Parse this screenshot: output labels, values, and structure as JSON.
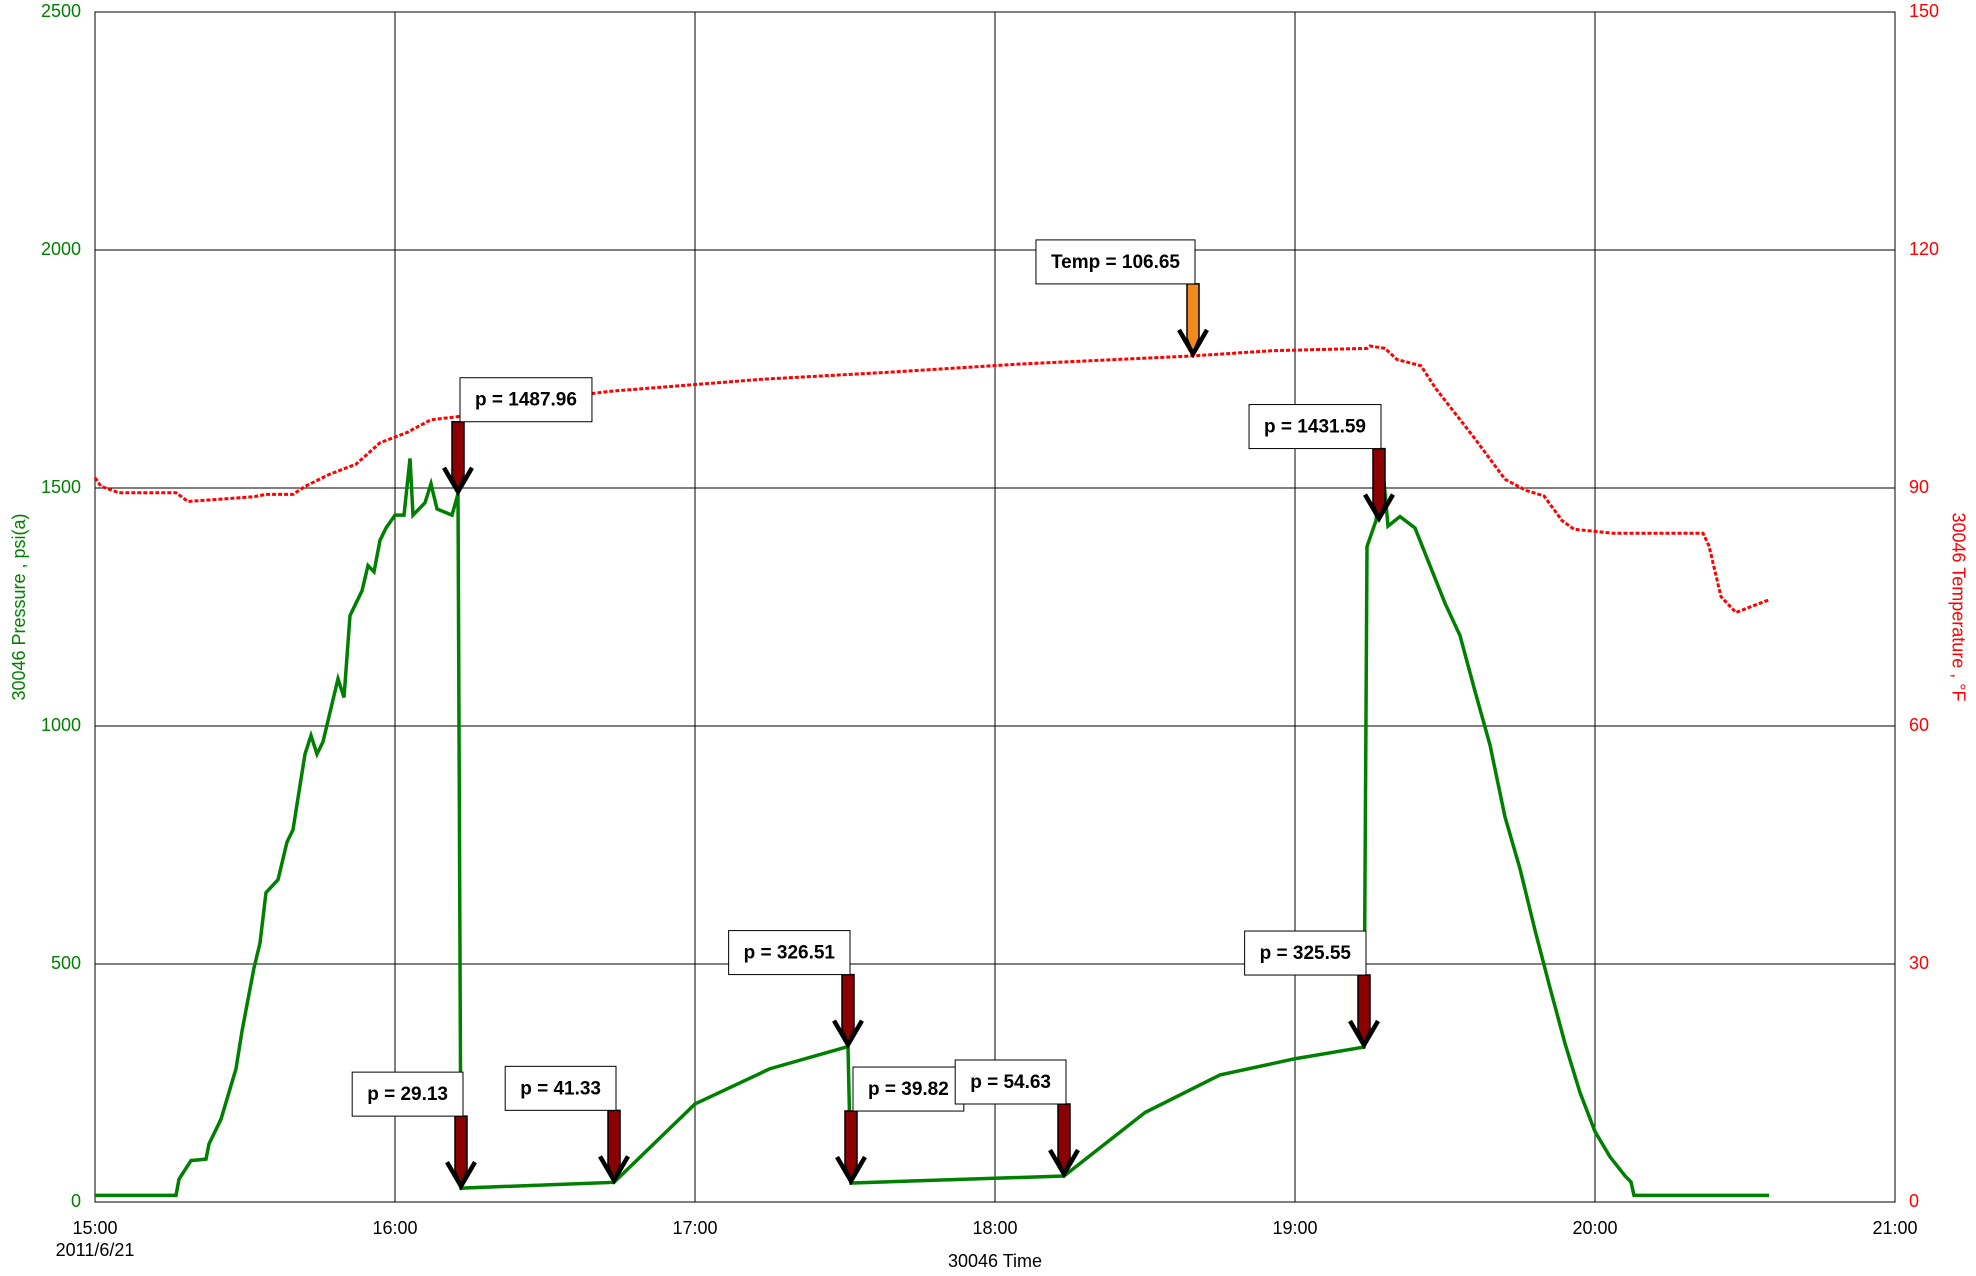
{
  "chart_data": {
    "type": "line",
    "x_label": "30046 Time",
    "x_date_label": "2011/6/21",
    "y_label": "30046 Pressure , psi(a)",
    "y2_label": "30046 Temperature , °F",
    "xlim": [
      15,
      21
    ],
    "xticks": [
      {
        "value": 15,
        "label": "15:00"
      },
      {
        "value": 16,
        "label": "16:00"
      },
      {
        "value": 17,
        "label": "17:00"
      },
      {
        "value": 18,
        "label": "18:00"
      },
      {
        "value": 19,
        "label": "19:00"
      },
      {
        "value": 20,
        "label": "20:00"
      },
      {
        "value": 21,
        "label": "21:00"
      }
    ],
    "ylim": [
      0,
      2500
    ],
    "yticks": [
      0,
      500,
      1000,
      1500,
      2000,
      2500
    ],
    "y2lim": [
      0,
      150
    ],
    "y2ticks": [
      0,
      30,
      60,
      90,
      120,
      150
    ],
    "grid": true,
    "y_color": "#008000",
    "y2_color": "#ff0000",
    "series": [
      {
        "color": "#008000",
        "axis": "y",
        "dashed": false,
        "x": [
          15.0,
          15.27,
          15.28,
          15.32,
          15.37,
          15.38,
          15.42,
          15.47,
          15.49,
          15.53,
          15.55,
          15.57,
          15.61,
          15.64,
          15.66,
          15.68,
          15.7,
          15.72,
          15.74,
          15.76,
          15.78,
          15.81,
          15.83,
          15.85,
          15.87,
          15.89,
          15.91,
          15.93,
          15.95,
          15.97,
          16.0,
          16.03,
          16.05,
          16.06,
          16.08,
          16.1,
          16.12,
          16.14,
          16.19,
          16.21,
          16.22,
          16.73,
          17.0,
          17.25,
          17.51,
          17.52,
          18.23,
          18.5,
          18.75,
          19.0,
          19.23,
          19.24,
          19.27,
          19.29,
          19.31,
          19.35,
          19.4,
          19.45,
          19.5,
          19.55,
          19.6,
          19.65,
          19.7,
          19.75,
          19.8,
          19.85,
          19.9,
          19.95,
          20.0,
          20.05,
          20.1,
          20.12,
          20.13,
          20.58
        ],
        "values": [
          14,
          14,
          48,
          87,
          90,
          122,
          174,
          280,
          359,
          492,
          544,
          650,
          677,
          756,
          782,
          862,
          941,
          980,
          941,
          967,
          1020,
          1099,
          1060,
          1232,
          1258,
          1284,
          1337,
          1324,
          1390,
          1416,
          1443,
          1443,
          1562,
          1443,
          1456,
          1469,
          1509,
          1456,
          1443,
          1487.96,
          29.13,
          41.33,
          206,
          280,
          326.51,
          39.82,
          54.63,
          188,
          267,
          301,
          325.55,
          1377,
          1431.59,
          1560,
          1420,
          1440,
          1416,
          1337,
          1258,
          1190,
          1073,
          960,
          809,
          700,
          571,
          450,
          333,
          230,
          148,
          95,
          55,
          42,
          14,
          14
        ]
      },
      {
        "color": "#ff0000",
        "axis": "y2",
        "dashed": true,
        "x": [
          15.0,
          15.02,
          15.08,
          15.27,
          15.31,
          15.42,
          15.53,
          15.57,
          15.66,
          15.7,
          15.78,
          15.87,
          15.95,
          16.04,
          16.12,
          16.21,
          16.29,
          16.46,
          16.72,
          17.22,
          17.65,
          18.07,
          18.66,
          18.92,
          19.24,
          19.25,
          19.3,
          19.34,
          19.42,
          19.47,
          19.6,
          19.7,
          19.77,
          19.83,
          19.89,
          19.93,
          20.06,
          20.36,
          20.38,
          20.42,
          20.47,
          20.51,
          20.58
        ],
        "values": [
          91.3,
          90.2,
          89.4,
          89.4,
          88.3,
          88.6,
          88.9,
          89.2,
          89.2,
          90.2,
          91.7,
          93.0,
          95.7,
          97.0,
          98.6,
          99.0,
          99.7,
          101.0,
          102.2,
          103.7,
          104.6,
          105.6,
          106.65,
          107.3,
          107.6,
          107.9,
          107.6,
          106.2,
          105.4,
          102.5,
          96.2,
          91.1,
          89.7,
          89.0,
          85.9,
          84.8,
          84.3,
          84.3,
          82.7,
          76.3,
          74.3,
          74.9,
          75.9
        ]
      }
    ],
    "annotations": [
      {
        "text": "p = 1487.96",
        "x": 16.21,
        "y": 1487.96,
        "axis": "y",
        "arrow_color": "#8b0000"
      },
      {
        "text": "p = 29.13",
        "x": 16.22,
        "y": 29.13,
        "axis": "y",
        "arrow_color": "#8b0000"
      },
      {
        "text": "p = 41.33",
        "x": 16.73,
        "y": 41.33,
        "axis": "y",
        "arrow_color": "#8b0000"
      },
      {
        "text": "p = 326.51",
        "x": 17.51,
        "y": 326.51,
        "axis": "y",
        "arrow_color": "#8b0000"
      },
      {
        "text": "p = 39.82",
        "x": 17.52,
        "y": 39.82,
        "axis": "y",
        "arrow_color": "#8b0000"
      },
      {
        "text": "p = 54.63",
        "x": 18.23,
        "y": 54.63,
        "axis": "y",
        "arrow_color": "#8b0000"
      },
      {
        "text": "p = 325.55",
        "x": 19.23,
        "y": 325.55,
        "axis": "y",
        "arrow_color": "#8b0000"
      },
      {
        "text": "p = 1431.59",
        "x": 19.28,
        "y": 1431.59,
        "axis": "y",
        "arrow_color": "#8b0000"
      },
      {
        "text": "Temp = 106.65",
        "x": 18.66,
        "y": 106.65,
        "axis": "y2",
        "arrow_color": "#f08a1c"
      }
    ]
  }
}
